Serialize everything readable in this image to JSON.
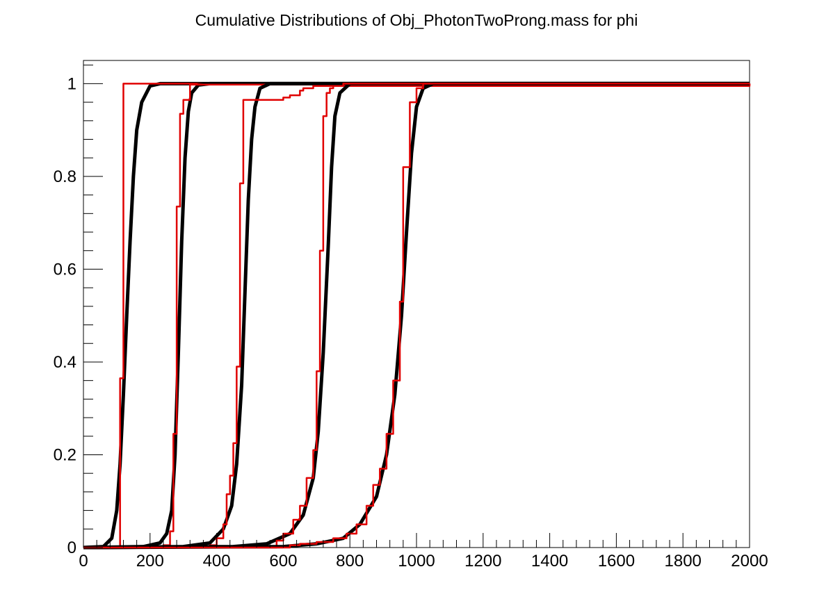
{
  "chart_data": {
    "type": "line",
    "title": "Cumulative Distributions of Obj_PhotonTwoProng.mass for phi",
    "xlabel": "",
    "ylabel": "",
    "xlim": [
      0,
      2000
    ],
    "ylim": [
      0,
      1.05
    ],
    "x_ticks": [
      0,
      200,
      400,
      600,
      800,
      1000,
      1200,
      1400,
      1600,
      1800,
      2000
    ],
    "x_tick_labels": [
      "0",
      "200",
      "400",
      "600",
      "800",
      "1000",
      "1200",
      "1400",
      "1600",
      "1800",
      "2000"
    ],
    "y_ticks": [
      0,
      0.2,
      0.4,
      0.6,
      0.8,
      1
    ],
    "y_tick_labels": [
      "0",
      "0.2",
      "0.4",
      "0.6",
      "0.8",
      "1"
    ],
    "grid": false,
    "legend": "none",
    "colors": {
      "smooth": "#000000",
      "step": "#e00000"
    },
    "series": [
      {
        "style": "smooth",
        "color": "#000000",
        "x": [
          0,
          60,
          85,
          100,
          110,
          120,
          130,
          140,
          150,
          160,
          175,
          200,
          230,
          2000
        ],
        "values": [
          0,
          0.002,
          0.02,
          0.08,
          0.18,
          0.33,
          0.5,
          0.66,
          0.8,
          0.9,
          0.96,
          0.995,
          1,
          1
        ]
      },
      {
        "style": "step",
        "color": "#e00000",
        "x": [
          0,
          100,
          110,
          120,
          2000
        ],
        "values": [
          0,
          0,
          0.365,
          1,
          1
        ]
      },
      {
        "style": "smooth",
        "color": "#000000",
        "x": [
          0,
          180,
          230,
          250,
          265,
          275,
          285,
          295,
          305,
          315,
          325,
          345,
          380,
          2000
        ],
        "values": [
          0,
          0.002,
          0.01,
          0.03,
          0.08,
          0.2,
          0.42,
          0.66,
          0.84,
          0.94,
          0.98,
          0.997,
          1,
          1
        ]
      },
      {
        "style": "step",
        "color": "#e00000",
        "x": [
          0,
          240,
          260,
          270,
          280,
          290,
          300,
          310,
          320,
          2000
        ],
        "values": [
          0,
          0.005,
          0.035,
          0.245,
          0.735,
          0.935,
          0.965,
          0.965,
          0.998,
          1
        ]
      },
      {
        "style": "smooth",
        "color": "#000000",
        "x": [
          0,
          300,
          380,
          420,
          445,
          460,
          475,
          485,
          495,
          505,
          515,
          530,
          560,
          2000
        ],
        "values": [
          0,
          0.002,
          0.01,
          0.04,
          0.09,
          0.18,
          0.35,
          0.55,
          0.75,
          0.88,
          0.95,
          0.99,
          1,
          1
        ]
      },
      {
        "style": "step",
        "color": "#e00000",
        "x": [
          0,
          380,
          400,
          420,
          430,
          440,
          450,
          460,
          470,
          480,
          490,
          500,
          520,
          600,
          620,
          650,
          660,
          690,
          2000
        ],
        "values": [
          0,
          0.005,
          0.02,
          0.05,
          0.115,
          0.155,
          0.225,
          0.39,
          0.785,
          0.965,
          0.965,
          0.965,
          0.965,
          0.97,
          0.975,
          0.985,
          0.99,
          0.995,
          1
        ]
      },
      {
        "style": "smooth",
        "color": "#000000",
        "x": [
          0,
          450,
          550,
          620,
          660,
          690,
          705,
          720,
          735,
          745,
          755,
          770,
          800,
          2000
        ],
        "values": [
          0,
          0.002,
          0.008,
          0.03,
          0.07,
          0.15,
          0.25,
          0.42,
          0.65,
          0.82,
          0.93,
          0.98,
          1,
          1
        ]
      },
      {
        "style": "step",
        "color": "#e00000",
        "x": [
          0,
          580,
          600,
          630,
          650,
          670,
          690,
          700,
          710,
          720,
          730,
          740,
          750,
          760,
          780,
          2000
        ],
        "values": [
          0,
          0.015,
          0.03,
          0.06,
          0.09,
          0.15,
          0.21,
          0.38,
          0.64,
          0.93,
          0.98,
          0.99,
          0.995,
          0.995,
          1,
          1
        ]
      },
      {
        "style": "smooth",
        "color": "#000000",
        "x": [
          0,
          600,
          700,
          780,
          830,
          880,
          910,
          935,
          955,
          970,
          985,
          1000,
          1020,
          1050,
          2000
        ],
        "values": [
          0,
          0.002,
          0.008,
          0.02,
          0.05,
          0.11,
          0.2,
          0.33,
          0.5,
          0.68,
          0.85,
          0.95,
          0.99,
          1,
          1
        ]
      },
      {
        "style": "step",
        "color": "#e00000",
        "x": [
          0,
          620,
          650,
          700,
          750,
          790,
          820,
          850,
          870,
          890,
          910,
          930,
          950,
          960,
          980,
          1000,
          1020,
          2000
        ],
        "values": [
          0,
          0.005,
          0.008,
          0.012,
          0.02,
          0.03,
          0.05,
          0.09,
          0.135,
          0.17,
          0.245,
          0.36,
          0.53,
          0.82,
          0.96,
          0.99,
          1,
          1
        ]
      }
    ]
  }
}
